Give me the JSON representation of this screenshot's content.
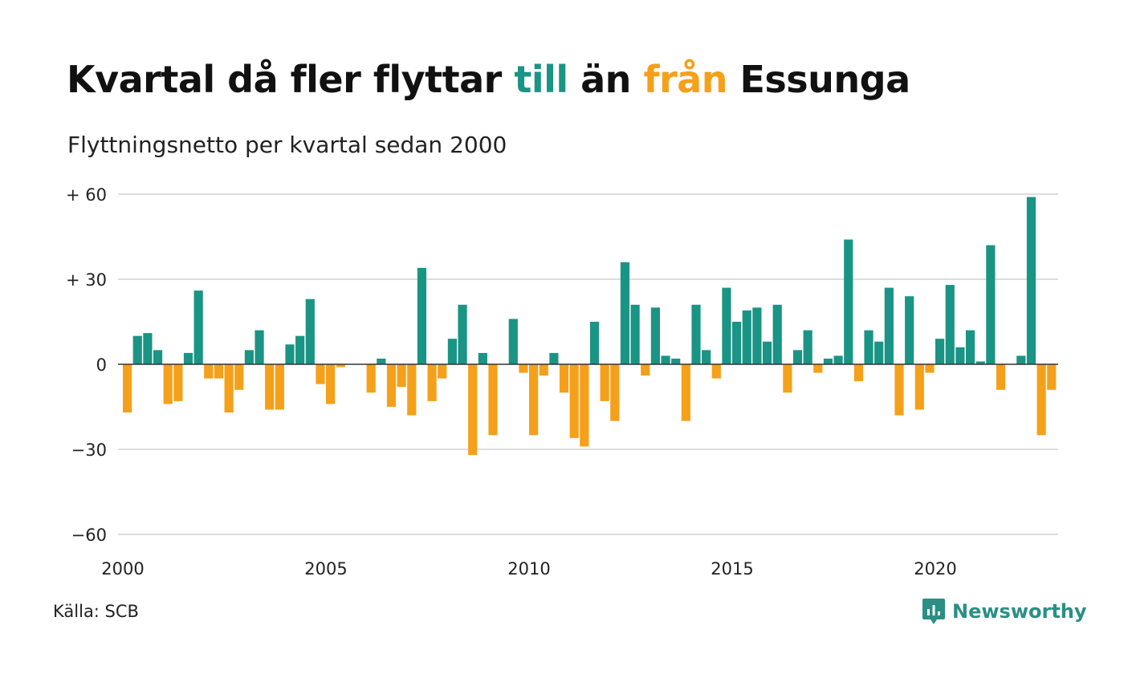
{
  "title": {
    "part1": "Kvartal då fler flyttar ",
    "till": "till",
    "part2": " än ",
    "fran": "från",
    "part3": " Essunga"
  },
  "subtitle": "Flyttningsnetto per kvartal sedan 2000",
  "source": "Källa: SCB",
  "brand": "Newsworthy",
  "colors": {
    "positive": "#1a9485",
    "negative": "#f5a01a",
    "grid": "#dddddd",
    "zero_line": "#333333",
    "brand": "#2a8f84"
  },
  "chart_data": {
    "type": "bar",
    "x_start": "2000 Q1",
    "x_ticks": [
      {
        "value": 2000,
        "label": "2000"
      },
      {
        "value": 2005,
        "label": "2005"
      },
      {
        "value": 2010,
        "label": "2010"
      },
      {
        "value": 2015,
        "label": "2015"
      },
      {
        "value": 2020,
        "label": "2020"
      }
    ],
    "y_ticks": [
      {
        "value": 60,
        "label": "+ 60"
      },
      {
        "value": 30,
        "label": "+ 30"
      },
      {
        "value": 0,
        "label": "0"
      },
      {
        "value": -30,
        "label": "−30"
      },
      {
        "value": -60,
        "label": "−60"
      }
    ],
    "ylim": [
      -60,
      60
    ],
    "xlim": [
      2000,
      2023
    ],
    "grid": true,
    "legend": "none",
    "values": [
      -17,
      10,
      11,
      5,
      -14,
      -13,
      4,
      26,
      -5,
      -5,
      -17,
      -9,
      5,
      12,
      -16,
      -16,
      7,
      10,
      23,
      -7,
      -14,
      -1,
      0,
      0,
      -10,
      2,
      -15,
      -8,
      -18,
      34,
      -13,
      -5,
      9,
      21,
      -32,
      4,
      -25,
      0,
      16,
      -3,
      -25,
      -4,
      4,
      -10,
      -26,
      -29,
      15,
      -13,
      -20,
      36,
      21,
      -4,
      20,
      3,
      2,
      -20,
      21,
      5,
      -5,
      27,
      15,
      19,
      20,
      8,
      21,
      -10,
      5,
      12,
      -3,
      2,
      3,
      44,
      -6,
      12,
      8,
      27,
      -18,
      24,
      -16,
      -3,
      9,
      28,
      6,
      12,
      1,
      42,
      -9,
      0,
      3,
      59,
      -25,
      -9
    ]
  }
}
